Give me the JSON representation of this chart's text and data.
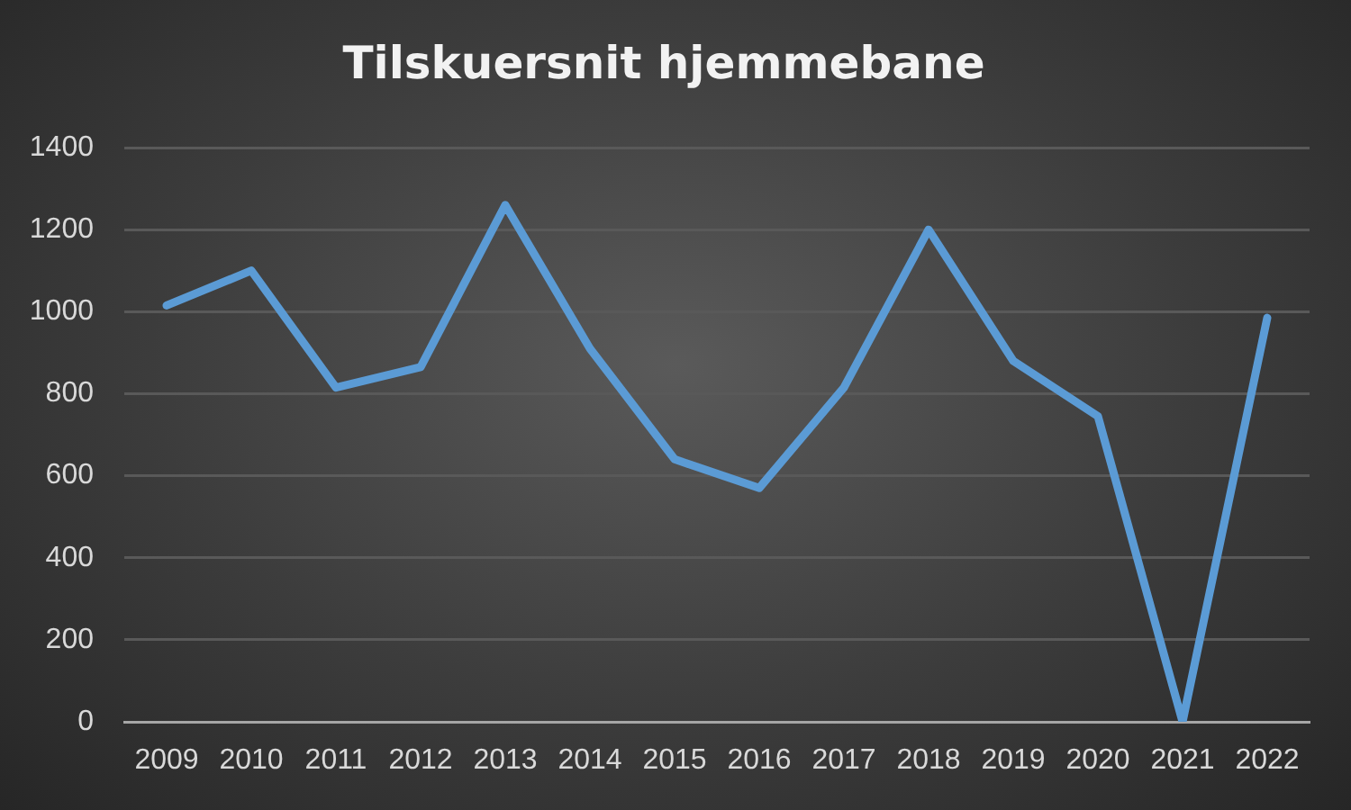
{
  "chart_data": {
    "type": "line",
    "title": "Tilskuersnit hjemmebane",
    "categories": [
      "2009",
      "2010",
      "2011",
      "2012",
      "2013",
      "2014",
      "2015",
      "2016",
      "2017",
      "2018",
      "2019",
      "2020",
      "2021",
      "2022"
    ],
    "series": [
      {
        "color": "#5b9bd5",
        "values": [
          1015,
          1100,
          815,
          865,
          1260,
          910,
          640,
          570,
          815,
          1200,
          880,
          745,
          0,
          985
        ]
      }
    ],
    "ylim": [
      0,
      1400
    ],
    "yticks": [
      0,
      200,
      400,
      600,
      800,
      1000,
      1200,
      1400
    ],
    "grid": "y",
    "legend": false,
    "marker": "none",
    "line_style": "solid"
  }
}
